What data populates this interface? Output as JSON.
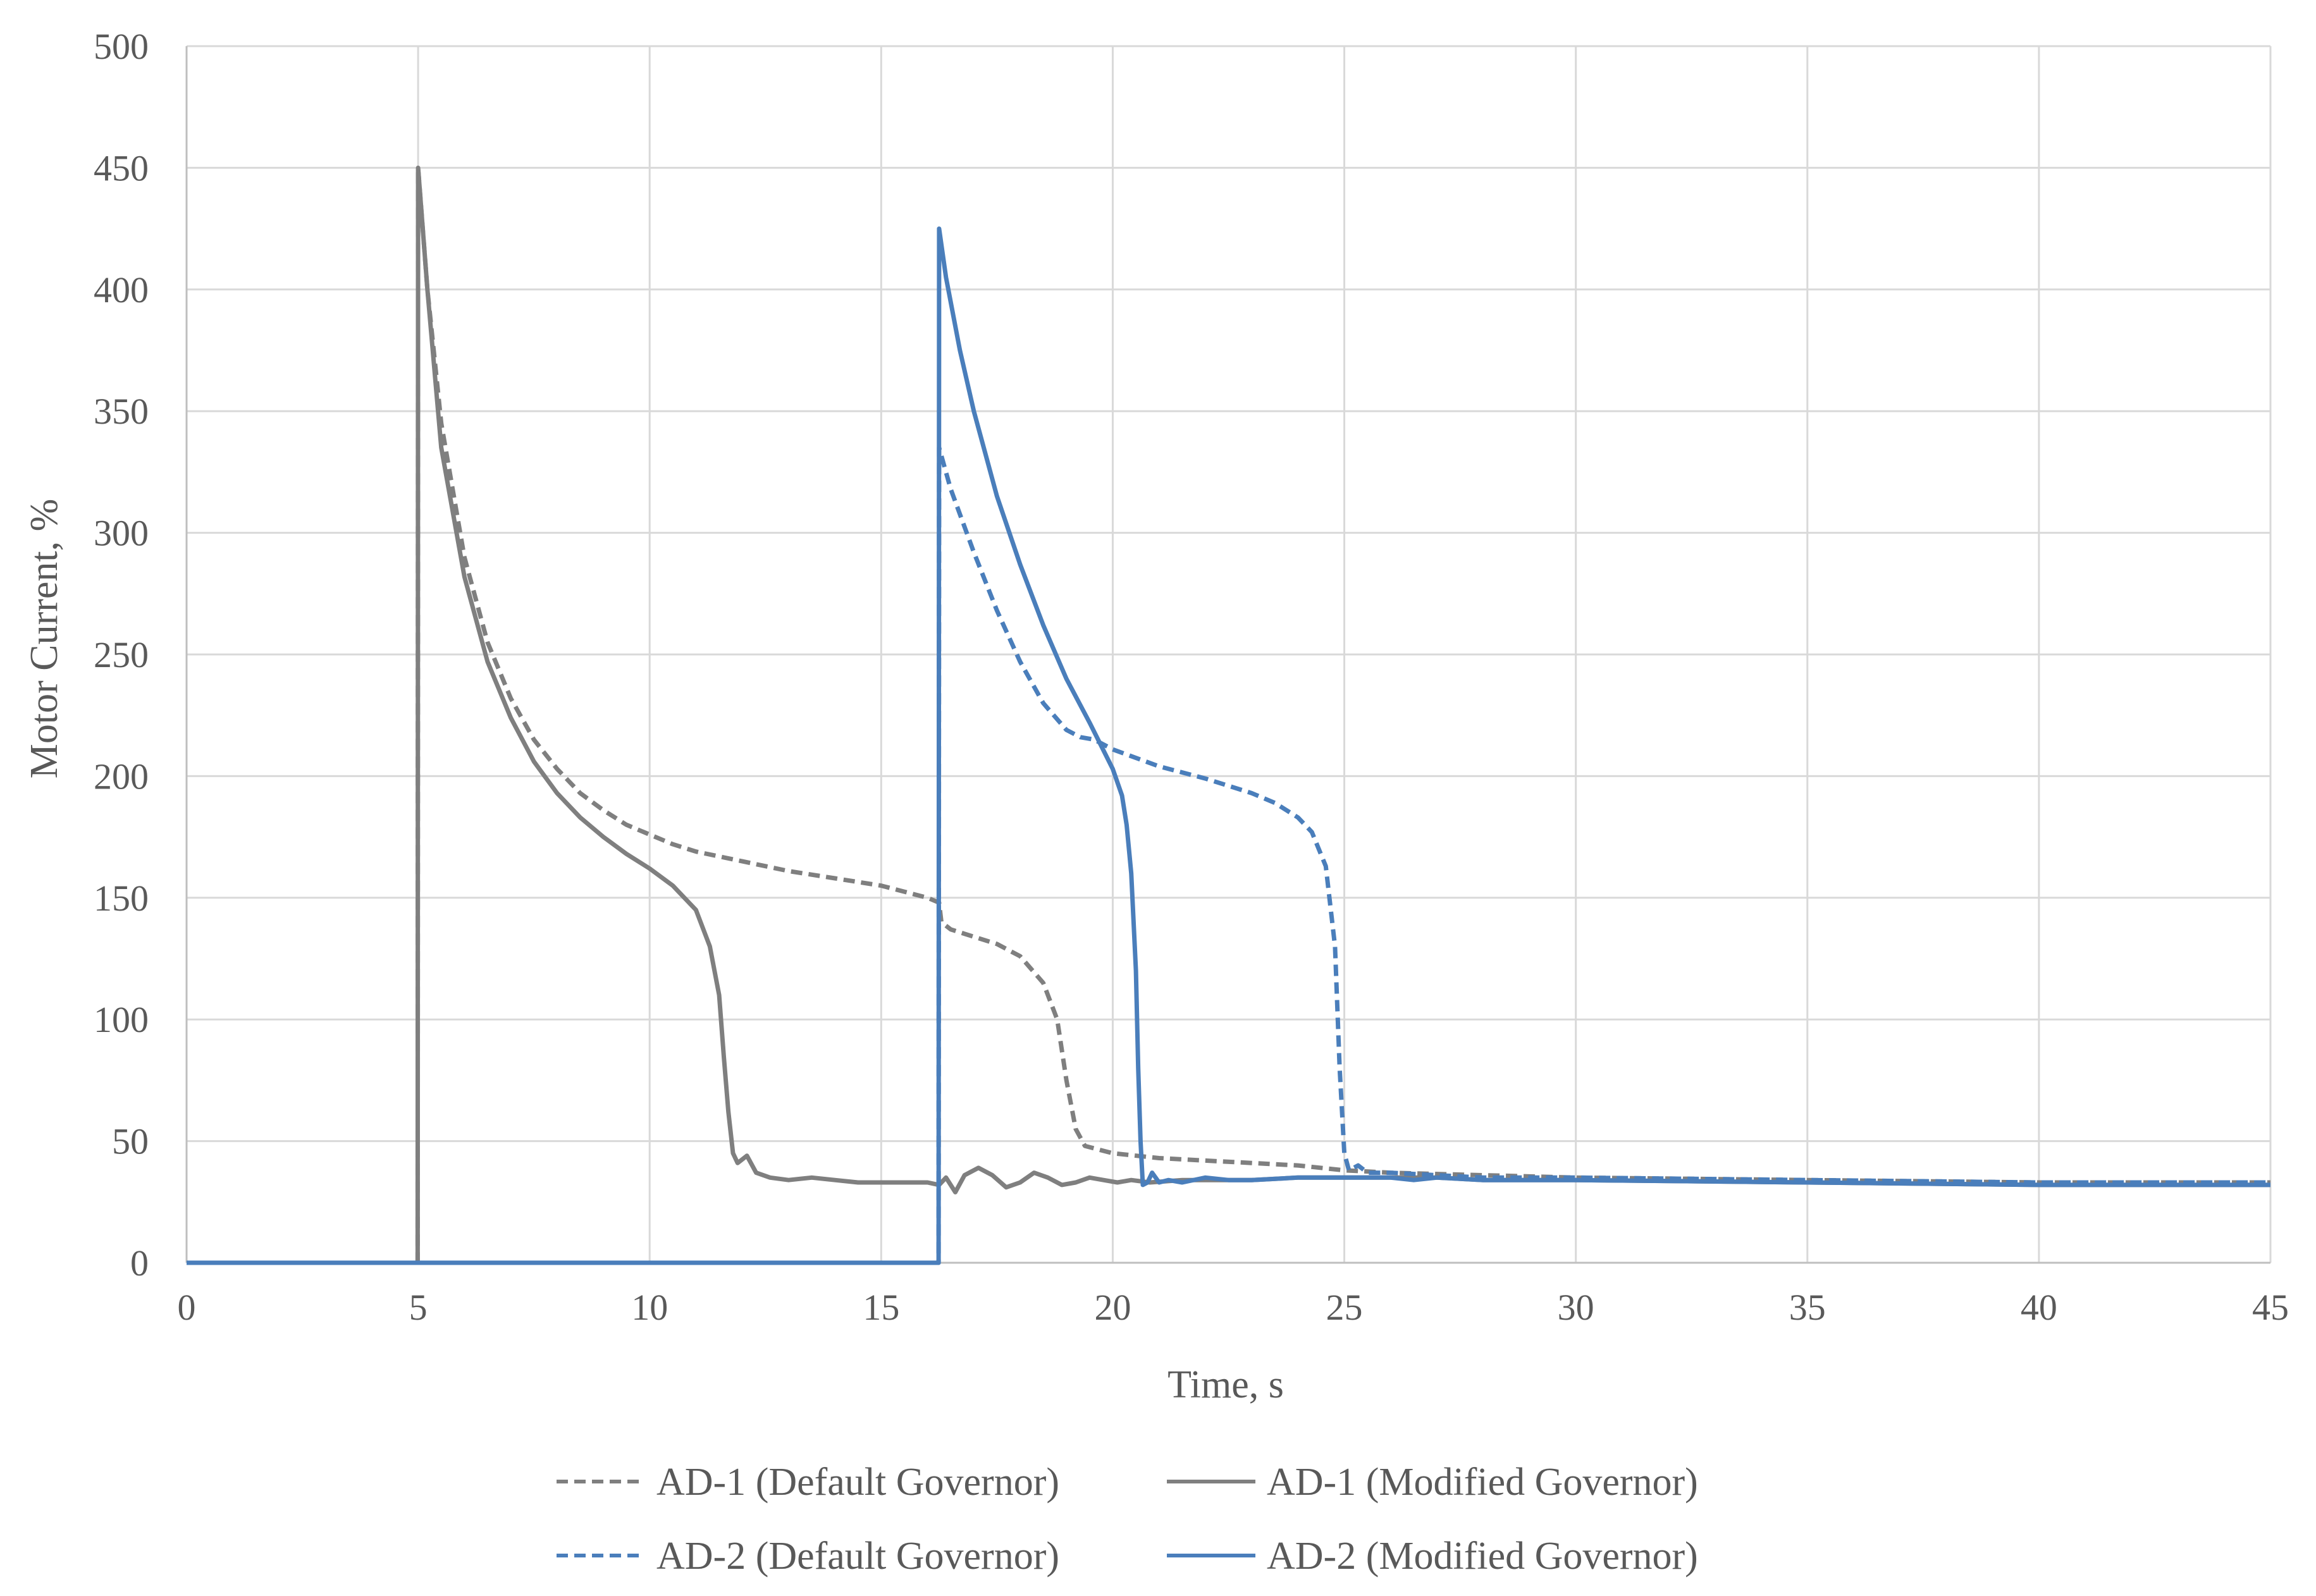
{
  "chart_data": {
    "type": "line",
    "title": "",
    "xlabel": "Time, s",
    "ylabel": "Motor Current, %",
    "xlim": [
      0,
      45
    ],
    "ylim": [
      0,
      500
    ],
    "x_ticks": [
      0,
      5,
      10,
      15,
      20,
      25,
      30,
      35,
      40,
      45
    ],
    "y_ticks": [
      0,
      50,
      100,
      150,
      200,
      250,
      300,
      350,
      400,
      450,
      500
    ],
    "x_tick_labels": [
      "0",
      "5",
      "10",
      "15",
      "20",
      "25",
      "30",
      "35",
      "40",
      "45"
    ],
    "y_tick_labels": [
      "0",
      "50",
      "100",
      "150",
      "200",
      "250",
      "300",
      "350",
      "400",
      "450",
      "500"
    ],
    "grid": true,
    "legend_position": "bottom",
    "series": [
      {
        "name": "AD-1 (Default Governor)",
        "color": "#7f7f7f",
        "style": "dashed",
        "points": [
          [
            0,
            0
          ],
          [
            4.99,
            0
          ],
          [
            5.0,
            450
          ],
          [
            5.2,
            400
          ],
          [
            5.5,
            345
          ],
          [
            6,
            290
          ],
          [
            6.5,
            255
          ],
          [
            7,
            232
          ],
          [
            7.5,
            215
          ],
          [
            8,
            203
          ],
          [
            8.5,
            193
          ],
          [
            9,
            186
          ],
          [
            9.5,
            180
          ],
          [
            10,
            176
          ],
          [
            10.5,
            172
          ],
          [
            11,
            169
          ],
          [
            12,
            165
          ],
          [
            13,
            161
          ],
          [
            14,
            158
          ],
          [
            15,
            155
          ],
          [
            16,
            150
          ],
          [
            16.25,
            148
          ],
          [
            16.3,
            140
          ],
          [
            16.5,
            137
          ],
          [
            17,
            134
          ],
          [
            17.5,
            131
          ],
          [
            18,
            126
          ],
          [
            18.5,
            115
          ],
          [
            18.8,
            100
          ],
          [
            19,
            75
          ],
          [
            19.2,
            55
          ],
          [
            19.4,
            48
          ],
          [
            20,
            45
          ],
          [
            21,
            43
          ],
          [
            22,
            42
          ],
          [
            23,
            41
          ],
          [
            24,
            40
          ],
          [
            25,
            38
          ],
          [
            26,
            37
          ],
          [
            28,
            36
          ],
          [
            30,
            35
          ],
          [
            35,
            34
          ],
          [
            40,
            33
          ],
          [
            45,
            33
          ]
        ]
      },
      {
        "name": "AD-1 (Modified Governor)",
        "color": "#7f7f7f",
        "style": "solid",
        "points": [
          [
            0,
            0
          ],
          [
            4.99,
            0
          ],
          [
            5.0,
            450
          ],
          [
            5.2,
            400
          ],
          [
            5.5,
            335
          ],
          [
            6,
            282
          ],
          [
            6.5,
            247
          ],
          [
            7,
            224
          ],
          [
            7.5,
            206
          ],
          [
            8,
            193
          ],
          [
            8.5,
            183
          ],
          [
            9,
            175
          ],
          [
            9.5,
            168
          ],
          [
            10,
            162
          ],
          [
            10.5,
            155
          ],
          [
            11,
            145
          ],
          [
            11.3,
            130
          ],
          [
            11.5,
            110
          ],
          [
            11.6,
            85
          ],
          [
            11.7,
            62
          ],
          [
            11.8,
            45
          ],
          [
            11.9,
            41
          ],
          [
            12.1,
            44
          ],
          [
            12.3,
            37
          ],
          [
            12.6,
            35
          ],
          [
            13,
            34
          ],
          [
            13.5,
            35
          ],
          [
            14,
            34
          ],
          [
            14.5,
            33
          ],
          [
            15,
            33
          ],
          [
            15.5,
            33
          ],
          [
            16,
            33
          ],
          [
            16.25,
            32
          ],
          [
            16.4,
            35
          ],
          [
            16.6,
            29
          ],
          [
            16.8,
            36
          ],
          [
            17.1,
            39
          ],
          [
            17.4,
            36
          ],
          [
            17.7,
            31
          ],
          [
            18,
            33
          ],
          [
            18.3,
            37
          ],
          [
            18.6,
            35
          ],
          [
            18.9,
            32
          ],
          [
            19.2,
            33
          ],
          [
            19.5,
            35
          ],
          [
            19.8,
            34
          ],
          [
            20.1,
            33
          ],
          [
            20.4,
            34
          ],
          [
            20.8,
            33
          ],
          [
            21.5,
            34
          ],
          [
            22,
            34
          ],
          [
            23,
            34
          ],
          [
            24,
            35
          ],
          [
            25,
            35
          ],
          [
            26,
            35
          ],
          [
            27,
            35
          ],
          [
            28,
            34
          ],
          [
            30,
            34
          ],
          [
            35,
            33
          ],
          [
            40,
            32
          ],
          [
            45,
            32
          ]
        ]
      },
      {
        "name": "AD-2 (Default Governor)",
        "color": "#4a7ebb",
        "style": "dashed",
        "points": [
          [
            0,
            0
          ],
          [
            16.24,
            0
          ],
          [
            16.25,
            335
          ],
          [
            16.5,
            318
          ],
          [
            17,
            292
          ],
          [
            17.5,
            268
          ],
          [
            18,
            247
          ],
          [
            18.5,
            230
          ],
          [
            19,
            219
          ],
          [
            19.3,
            216
          ],
          [
            19.6,
            215
          ],
          [
            20,
            211
          ],
          [
            21,
            204
          ],
          [
            22,
            199
          ],
          [
            23,
            193
          ],
          [
            23.5,
            189
          ],
          [
            24,
            183
          ],
          [
            24.3,
            177
          ],
          [
            24.6,
            163
          ],
          [
            24.8,
            130
          ],
          [
            24.9,
            80
          ],
          [
            25.0,
            45
          ],
          [
            25.1,
            38
          ],
          [
            25.3,
            40
          ],
          [
            25.5,
            37
          ],
          [
            26,
            37
          ],
          [
            27,
            36
          ],
          [
            28,
            35
          ],
          [
            30,
            35
          ],
          [
            35,
            34
          ],
          [
            40,
            33
          ],
          [
            45,
            33
          ]
        ]
      },
      {
        "name": "AD-2 (Modified Governor)",
        "color": "#4a7ebb",
        "style": "solid",
        "points": [
          [
            0,
            0
          ],
          [
            16.24,
            0
          ],
          [
            16.25,
            425
          ],
          [
            16.4,
            405
          ],
          [
            16.7,
            375
          ],
          [
            17,
            350
          ],
          [
            17.5,
            315
          ],
          [
            18,
            287
          ],
          [
            18.5,
            262
          ],
          [
            19,
            240
          ],
          [
            19.5,
            222
          ],
          [
            20,
            203
          ],
          [
            20.2,
            192
          ],
          [
            20.3,
            180
          ],
          [
            20.4,
            160
          ],
          [
            20.5,
            120
          ],
          [
            20.55,
            80
          ],
          [
            20.6,
            50
          ],
          [
            20.65,
            32
          ],
          [
            20.75,
            33
          ],
          [
            20.85,
            37
          ],
          [
            21,
            33
          ],
          [
            21.2,
            34
          ],
          [
            21.5,
            33
          ],
          [
            22,
            35
          ],
          [
            22.5,
            34
          ],
          [
            23,
            34
          ],
          [
            24,
            35
          ],
          [
            25,
            35
          ],
          [
            26,
            35
          ],
          [
            26.5,
            34
          ],
          [
            27,
            35
          ],
          [
            28,
            34
          ],
          [
            30,
            34
          ],
          [
            35,
            33
          ],
          [
            40,
            32
          ],
          [
            45,
            32
          ]
        ]
      }
    ]
  }
}
